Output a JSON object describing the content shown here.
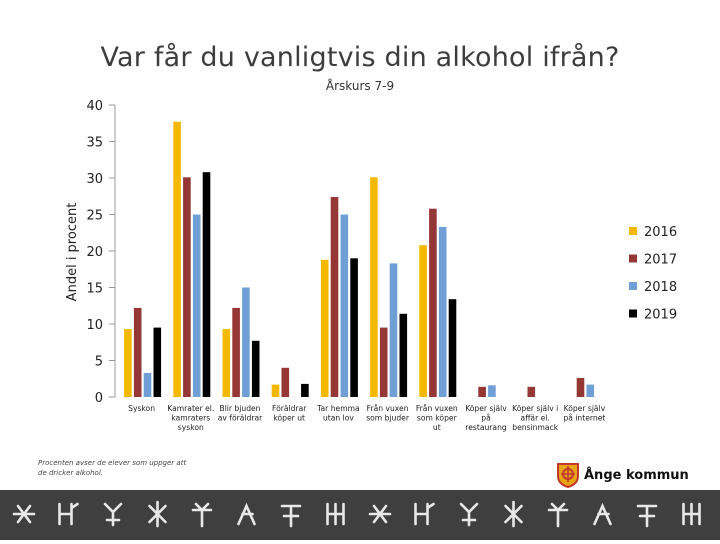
{
  "page": {
    "title": "Var får du vanligtvis din alkohol ifrån?",
    "footnote": "Procenten avser de elever som uppger att de dricker alkohol.",
    "logo_text": "Ånge kommun"
  },
  "chart_data": {
    "type": "bar",
    "title": "",
    "subtitle": "Årskurs 7-9",
    "xlabel": "",
    "ylabel": "Andel i procent",
    "ylim": [
      0,
      40
    ],
    "yticks": [
      0,
      5,
      10,
      15,
      20,
      25,
      30,
      35,
      40
    ],
    "grid": false,
    "legend_position": "right",
    "categories": [
      [
        "Syskon"
      ],
      [
        "Kamrater el.",
        "kamraters",
        "syskon"
      ],
      [
        "Blir bjuden",
        "av föräldrar"
      ],
      [
        "Föräldrar",
        "köper ut"
      ],
      [
        "Tar hemma",
        "utan lov"
      ],
      [
        "Från vuxen",
        "som bjuder"
      ],
      [
        "Från vuxen",
        "som köper",
        "ut"
      ],
      [
        "Köper själv",
        "på",
        "restaurang"
      ],
      [
        "Köper själv i",
        "affär el.",
        "bensinmack"
      ],
      [
        "Köper själv",
        "på internet"
      ]
    ],
    "series": [
      {
        "name": "2016",
        "color": "#f5b800",
        "values": [
          9.3,
          37.7,
          9.3,
          1.7,
          18.8,
          30.1,
          20.8,
          0,
          0,
          0
        ]
      },
      {
        "name": "2017",
        "color": "#953735",
        "values": [
          12.2,
          30.1,
          12.2,
          4.0,
          27.4,
          9.5,
          25.8,
          1.4,
          1.4,
          2.6
        ]
      },
      {
        "name": "2018",
        "color": "#6f9fd4",
        "values": [
          3.3,
          25.0,
          15.0,
          0,
          25.0,
          18.3,
          23.3,
          1.6,
          0,
          1.7
        ]
      },
      {
        "name": "2019",
        "color": "#000000",
        "values": [
          9.5,
          30.8,
          7.7,
          1.8,
          19.0,
          11.4,
          13.4,
          0,
          0,
          0
        ]
      }
    ]
  },
  "icons": {
    "logo": "ange-kommun-emblem-icon",
    "band": "decorative-rune-band"
  }
}
